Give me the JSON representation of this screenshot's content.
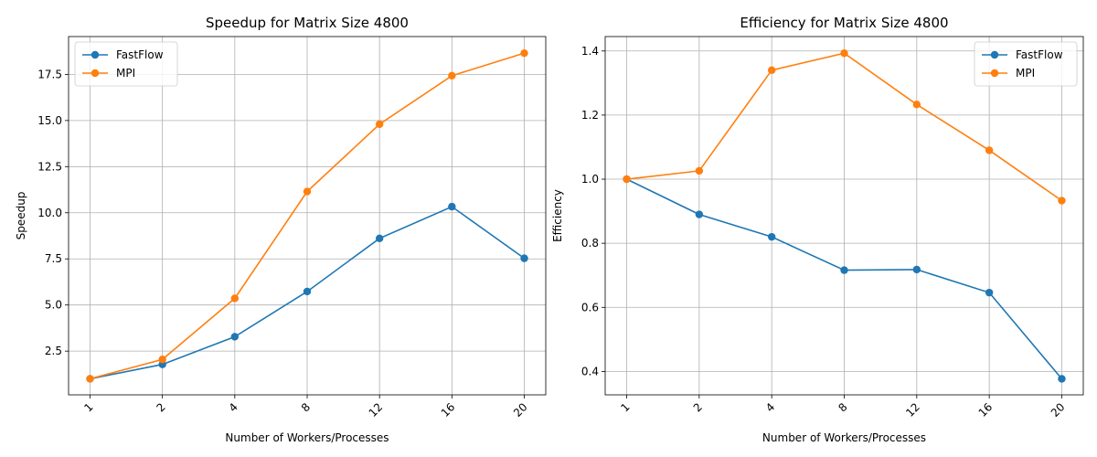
{
  "chart_data": [
    {
      "type": "line",
      "title": "Speedup for Matrix Size 4800",
      "xlabel": "Number of Workers/Processes",
      "ylabel": "Speedup",
      "categories": [
        "1",
        "2",
        "4",
        "8",
        "12",
        "16",
        "20"
      ],
      "ylim": [
        0.13,
        19.55
      ],
      "yticks": [
        "2.5",
        "5.0",
        "7.5",
        "10.0",
        "12.5",
        "15.0",
        "17.5"
      ],
      "grid": true,
      "legend_position": "upper left",
      "series": [
        {
          "name": "FastFlow",
          "color": "#1f77b4",
          "values": [
            1.0,
            1.78,
            3.28,
            5.73,
            8.61,
            10.33,
            7.53
          ]
        },
        {
          "name": "MPI",
          "color": "#ff7f0e",
          "values": [
            1.0,
            2.05,
            5.36,
            11.15,
            14.8,
            17.43,
            18.65
          ]
        }
      ]
    },
    {
      "type": "line",
      "title": "Efficiency for Matrix Size 4800",
      "xlabel": "Number of Workers/Processes",
      "ylabel": "Efficiency",
      "categories": [
        "1",
        "2",
        "4",
        "8",
        "12",
        "16",
        "20"
      ],
      "ylim": [
        0.327,
        1.445
      ],
      "yticks": [
        "0.4",
        "0.6",
        "0.8",
        "1.0",
        "1.2",
        "1.4"
      ],
      "grid": true,
      "legend_position": "upper right",
      "series": [
        {
          "name": "FastFlow",
          "color": "#1f77b4",
          "values": [
            1.0,
            0.89,
            0.82,
            0.716,
            0.718,
            0.646,
            0.377
          ]
        },
        {
          "name": "MPI",
          "color": "#ff7f0e",
          "values": [
            1.0,
            1.026,
            1.34,
            1.393,
            1.233,
            1.09,
            0.933
          ]
        }
      ]
    }
  ]
}
